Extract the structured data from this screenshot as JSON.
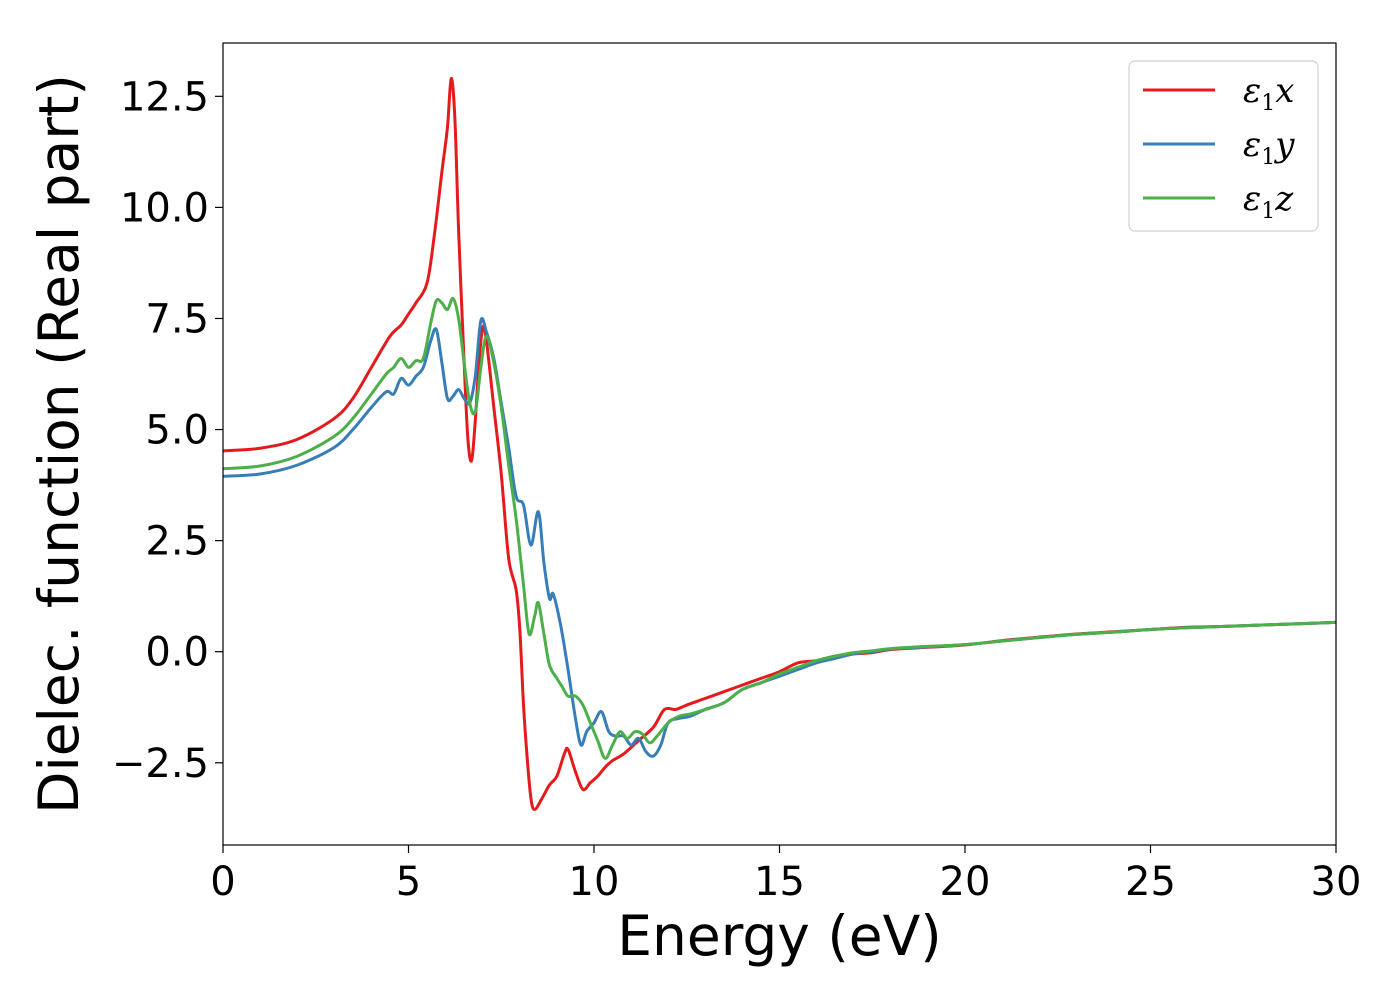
{
  "chart_data": {
    "type": "line",
    "xlabel": "Energy (eV)",
    "ylabel": "Dielec. function (Real part)",
    "xlim": [
      0,
      30
    ],
    "ylim": [
      -4.35,
      13.7
    ],
    "xticks": [
      0,
      5,
      10,
      15,
      20,
      25,
      30
    ],
    "xtick_labels": [
      "0",
      "5",
      "10",
      "15",
      "20",
      "25",
      "30"
    ],
    "yticks": [
      -2.5,
      0.0,
      2.5,
      5.0,
      7.5,
      10.0,
      12.5
    ],
    "ytick_labels": [
      "−2.5",
      "0.0",
      "2.5",
      "5.0",
      "7.5",
      "10.0",
      "12.5"
    ],
    "grid": false,
    "legend_position": "top-right",
    "series": [
      {
        "name": "ε1x",
        "legend_base": "ε",
        "legend_sub": "1",
        "legend_tail": "x",
        "color": "#e41a1c",
        "points": [
          [
            0,
            4.52
          ],
          [
            1,
            4.58
          ],
          [
            2,
            4.78
          ],
          [
            3,
            5.25
          ],
          [
            3.5,
            5.7
          ],
          [
            4,
            6.4
          ],
          [
            4.5,
            7.1
          ],
          [
            4.8,
            7.35
          ],
          [
            5.0,
            7.6
          ],
          [
            5.2,
            7.85
          ],
          [
            5.5,
            8.3
          ],
          [
            5.7,
            9.4
          ],
          [
            5.9,
            10.8
          ],
          [
            6.05,
            11.8
          ],
          [
            6.15,
            12.9
          ],
          [
            6.25,
            12.0
          ],
          [
            6.35,
            9.5
          ],
          [
            6.5,
            6.5
          ],
          [
            6.6,
            4.8
          ],
          [
            6.7,
            4.3
          ],
          [
            6.8,
            5.2
          ],
          [
            6.9,
            6.5
          ],
          [
            7.0,
            7.3
          ],
          [
            7.1,
            7.0
          ],
          [
            7.3,
            5.5
          ],
          [
            7.5,
            4.0
          ],
          [
            7.7,
            2.1
          ],
          [
            7.9,
            1.4
          ],
          [
            8.0,
            0.5
          ],
          [
            8.1,
            -1.2
          ],
          [
            8.2,
            -2.4
          ],
          [
            8.3,
            -3.3
          ],
          [
            8.4,
            -3.55
          ],
          [
            8.6,
            -3.3
          ],
          [
            8.8,
            -3.0
          ],
          [
            9.0,
            -2.8
          ],
          [
            9.2,
            -2.3
          ],
          [
            9.3,
            -2.2
          ],
          [
            9.5,
            -2.7
          ],
          [
            9.7,
            -3.1
          ],
          [
            9.9,
            -2.95
          ],
          [
            10.1,
            -2.8
          ],
          [
            10.3,
            -2.6
          ],
          [
            10.5,
            -2.45
          ],
          [
            10.8,
            -2.3
          ],
          [
            11.2,
            -2.0
          ],
          [
            11.6,
            -1.7
          ],
          [
            11.9,
            -1.3
          ],
          [
            12.2,
            -1.3
          ],
          [
            12.5,
            -1.2
          ],
          [
            13,
            -1.05
          ],
          [
            13.5,
            -0.9
          ],
          [
            14,
            -0.75
          ],
          [
            14.5,
            -0.6
          ],
          [
            15,
            -0.45
          ],
          [
            15.5,
            -0.25
          ],
          [
            16,
            -0.2
          ],
          [
            16.5,
            -0.1
          ],
          [
            17,
            -0.05
          ],
          [
            17.5,
            -0.02
          ],
          [
            18,
            0.05
          ],
          [
            19,
            0.1
          ],
          [
            20,
            0.15
          ],
          [
            21,
            0.25
          ],
          [
            22,
            0.33
          ],
          [
            23,
            0.4
          ],
          [
            24,
            0.45
          ],
          [
            25,
            0.5
          ],
          [
            26,
            0.55
          ],
          [
            27,
            0.57
          ],
          [
            28,
            0.6
          ],
          [
            29,
            0.63
          ],
          [
            30,
            0.66
          ]
        ]
      },
      {
        "name": "ε1y",
        "legend_base": "ε",
        "legend_sub": "1",
        "legend_tail": "y",
        "color": "#377eb8",
        "points": [
          [
            0,
            3.95
          ],
          [
            1,
            4.0
          ],
          [
            2,
            4.2
          ],
          [
            3,
            4.6
          ],
          [
            3.5,
            5.0
          ],
          [
            4,
            5.5
          ],
          [
            4.4,
            5.85
          ],
          [
            4.6,
            5.8
          ],
          [
            4.8,
            6.15
          ],
          [
            5.0,
            6.0
          ],
          [
            5.2,
            6.2
          ],
          [
            5.4,
            6.4
          ],
          [
            5.6,
            7.0
          ],
          [
            5.75,
            7.25
          ],
          [
            5.9,
            6.5
          ],
          [
            6.05,
            5.7
          ],
          [
            6.2,
            5.75
          ],
          [
            6.35,
            5.9
          ],
          [
            6.5,
            5.7
          ],
          [
            6.65,
            5.6
          ],
          [
            6.8,
            6.2
          ],
          [
            6.95,
            7.45
          ],
          [
            7.1,
            7.2
          ],
          [
            7.3,
            6.6
          ],
          [
            7.5,
            5.6
          ],
          [
            7.7,
            4.6
          ],
          [
            7.9,
            3.5
          ],
          [
            8.1,
            3.3
          ],
          [
            8.3,
            2.4
          ],
          [
            8.5,
            3.15
          ],
          [
            8.65,
            2.0
          ],
          [
            8.8,
            1.2
          ],
          [
            8.9,
            1.3
          ],
          [
            9.1,
            0.6
          ],
          [
            9.3,
            -0.4
          ],
          [
            9.5,
            -1.5
          ],
          [
            9.65,
            -2.1
          ],
          [
            9.8,
            -1.8
          ],
          [
            10.0,
            -1.6
          ],
          [
            10.2,
            -1.35
          ],
          [
            10.4,
            -1.8
          ],
          [
            10.6,
            -1.9
          ],
          [
            10.8,
            -1.9
          ],
          [
            11.0,
            -2.1
          ],
          [
            11.2,
            -1.95
          ],
          [
            11.4,
            -2.25
          ],
          [
            11.6,
            -2.35
          ],
          [
            11.8,
            -2.1
          ],
          [
            12.0,
            -1.6
          ],
          [
            12.3,
            -1.5
          ],
          [
            12.6,
            -1.45
          ],
          [
            13,
            -1.3
          ],
          [
            13.5,
            -1.15
          ],
          [
            14,
            -0.85
          ],
          [
            14.5,
            -0.7
          ],
          [
            15,
            -0.55
          ],
          [
            15.5,
            -0.4
          ],
          [
            16,
            -0.25
          ],
          [
            16.5,
            -0.15
          ],
          [
            17,
            -0.05
          ],
          [
            17.5,
            0.0
          ],
          [
            18,
            0.06
          ],
          [
            19,
            0.11
          ],
          [
            20,
            0.16
          ],
          [
            21,
            0.24
          ],
          [
            22,
            0.32
          ],
          [
            23,
            0.39
          ],
          [
            24,
            0.44
          ],
          [
            25,
            0.5
          ],
          [
            26,
            0.54
          ],
          [
            27,
            0.57
          ],
          [
            28,
            0.6
          ],
          [
            29,
            0.63
          ],
          [
            30,
            0.66
          ]
        ]
      },
      {
        "name": "ε1z",
        "legend_base": "ε",
        "legend_sub": "1",
        "legend_tail": "z",
        "color": "#4daf4a",
        "points": [
          [
            0,
            4.12
          ],
          [
            1,
            4.18
          ],
          [
            2,
            4.4
          ],
          [
            3,
            4.85
          ],
          [
            3.5,
            5.25
          ],
          [
            4,
            5.8
          ],
          [
            4.4,
            6.25
          ],
          [
            4.6,
            6.4
          ],
          [
            4.8,
            6.6
          ],
          [
            5.0,
            6.4
          ],
          [
            5.2,
            6.55
          ],
          [
            5.4,
            6.6
          ],
          [
            5.6,
            7.4
          ],
          [
            5.75,
            7.9
          ],
          [
            5.9,
            7.85
          ],
          [
            6.05,
            7.7
          ],
          [
            6.2,
            7.95
          ],
          [
            6.35,
            7.5
          ],
          [
            6.5,
            6.5
          ],
          [
            6.65,
            5.6
          ],
          [
            6.8,
            5.4
          ],
          [
            6.95,
            6.4
          ],
          [
            7.1,
            7.1
          ],
          [
            7.3,
            6.5
          ],
          [
            7.5,
            5.5
          ],
          [
            7.7,
            4.2
          ],
          [
            7.9,
            3.0
          ],
          [
            8.1,
            1.5
          ],
          [
            8.25,
            0.4
          ],
          [
            8.4,
            0.8
          ],
          [
            8.5,
            1.1
          ],
          [
            8.65,
            0.4
          ],
          [
            8.8,
            -0.3
          ],
          [
            9.0,
            -0.6
          ],
          [
            9.15,
            -0.8
          ],
          [
            9.3,
            -1.0
          ],
          [
            9.5,
            -1.0
          ],
          [
            9.7,
            -1.2
          ],
          [
            9.9,
            -1.6
          ],
          [
            10.1,
            -2.0
          ],
          [
            10.3,
            -2.4
          ],
          [
            10.5,
            -2.1
          ],
          [
            10.7,
            -1.8
          ],
          [
            10.9,
            -1.95
          ],
          [
            11.1,
            -1.8
          ],
          [
            11.3,
            -1.85
          ],
          [
            11.5,
            -2.05
          ],
          [
            11.7,
            -1.9
          ],
          [
            12.0,
            -1.6
          ],
          [
            12.3,
            -1.45
          ],
          [
            12.6,
            -1.4
          ],
          [
            13,
            -1.3
          ],
          [
            13.5,
            -1.15
          ],
          [
            14,
            -0.85
          ],
          [
            14.5,
            -0.7
          ],
          [
            15,
            -0.5
          ],
          [
            15.5,
            -0.35
          ],
          [
            16,
            -0.2
          ],
          [
            16.5,
            -0.1
          ],
          [
            17,
            -0.02
          ],
          [
            17.5,
            0.02
          ],
          [
            18,
            0.07
          ],
          [
            19,
            0.12
          ],
          [
            20,
            0.16
          ],
          [
            21,
            0.24
          ],
          [
            22,
            0.32
          ],
          [
            23,
            0.39
          ],
          [
            24,
            0.44
          ],
          [
            25,
            0.5
          ],
          [
            26,
            0.54
          ],
          [
            27,
            0.57
          ],
          [
            28,
            0.6
          ],
          [
            29,
            0.63
          ],
          [
            30,
            0.66
          ]
        ]
      }
    ]
  }
}
